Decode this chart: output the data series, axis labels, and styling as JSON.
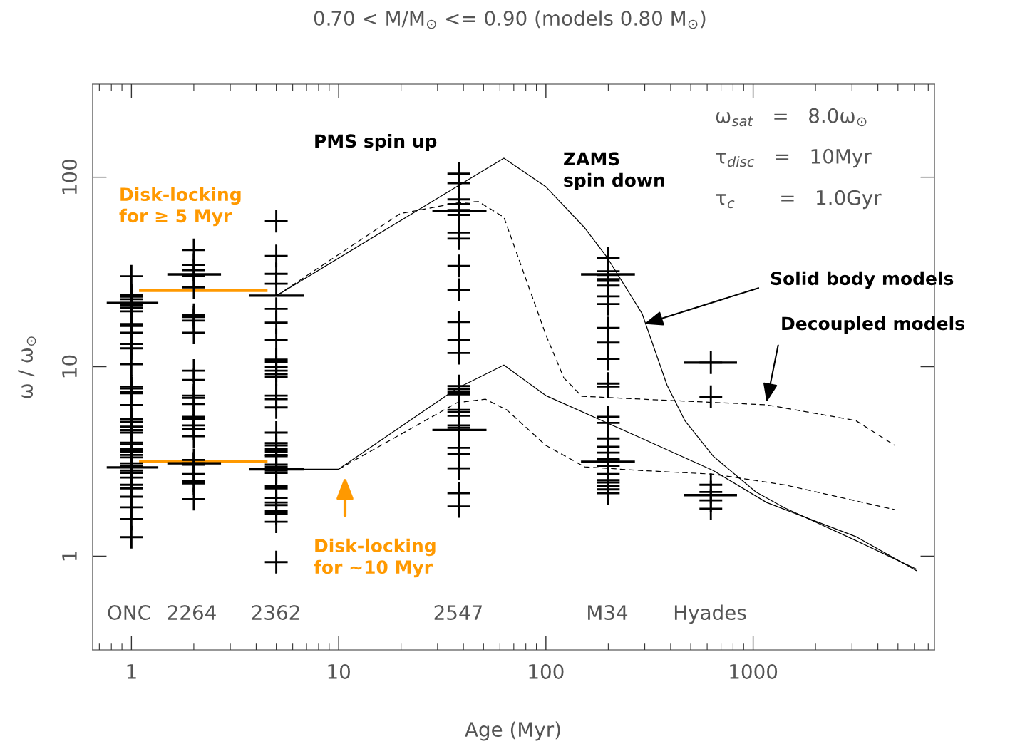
{
  "chart_data": {
    "type": "line",
    "title": "0.70 < M/M$_{⊙}$ <= 0.90 (models 0.80 M$_{⊙}$)",
    "xlabel": "Age (Myr)",
    "ylabel": "ω / ω$_{⊙}$",
    "log": "xy",
    "xlim": [
      0.65,
      7500
    ],
    "ylim": [
      0.32,
      310
    ],
    "xticks": [
      1,
      10,
      100,
      1000
    ],
    "yticks": [
      1,
      10,
      100
    ],
    "series": [
      {
        "color": "#ff9900",
        "line_style": "solid",
        "x": [
          1.11,
          4.45
        ],
        "values": [
          25.3,
          25.3
        ]
      },
      {
        "color": "#ff9900",
        "line_style": "solid",
        "x": [
          1.11,
          4.45
        ],
        "values": [
          3.16,
          3.16
        ]
      },
      {
        "color": "#000000",
        "line_style": "solid",
        "x": [
          5.02,
          37.2,
          62.7,
          100,
          154,
          196,
          291,
          384,
          468,
          642,
          1033,
          1416,
          3125,
          6124
        ],
        "values": [
          23.7,
          89.3,
          126,
          89,
          54,
          38.2,
          19.1,
          8.0,
          5.2,
          3.37,
          2.18,
          1.8,
          1.21,
          0.855
        ]
      },
      {
        "color": "#000000",
        "line_style": "solid",
        "x": [
          5.02,
          10,
          37.2,
          62.7,
          100,
          291,
          642,
          1162,
          3125,
          6124
        ],
        "values": [
          2.88,
          2.88,
          7.68,
          10.2,
          7.04,
          4.18,
          2.83,
          1.92,
          1.27,
          0.84
        ]
      },
      {
        "color": "#000000",
        "line_style": "dashed",
        "x": [
          5.02,
          19.8,
          37.2,
          47.2,
          62.7,
          82,
          100,
          122,
          149,
          291,
          1162,
          3125,
          4831
        ],
        "values": [
          23.7,
          64.2,
          73.1,
          74.4,
          61.5,
          27,
          14.7,
          8.74,
          6.98,
          6.74,
          6.29,
          5.2,
          3.84
        ]
      },
      {
        "color": "#000000",
        "line_style": "dashed",
        "x": [
          10,
          37.2,
          51,
          64.7,
          100,
          154,
          291,
          642,
          1416,
          4831
        ],
        "values": [
          2.88,
          6.45,
          6.74,
          5.92,
          3.84,
          2.96,
          2.83,
          2.71,
          2.38,
          1.76
        ]
      },
      {
        "type": "scatter",
        "color": "#000000",
        "marker": "cross",
        "x": [
          1,
          1,
          1,
          1,
          1,
          1,
          1,
          1,
          1,
          1,
          1,
          1,
          1,
          1,
          1,
          1,
          1,
          1,
          1,
          1,
          1,
          1,
          1,
          1,
          1,
          1,
          1,
          1,
          1,
          1,
          1,
          1,
          1,
          1,
          1,
          1,
          1,
          1,
          1,
          1,
          1,
          2,
          2,
          2,
          2,
          2,
          2,
          2,
          2,
          2,
          2,
          2,
          2,
          2,
          2,
          2,
          2,
          2,
          2,
          2,
          2,
          2,
          2,
          2,
          2,
          2,
          2,
          5,
          5,
          5,
          5,
          5,
          5,
          5,
          5,
          5,
          5,
          5,
          5,
          5,
          5,
          5,
          5,
          5,
          5,
          5,
          5,
          5,
          5,
          5,
          5,
          5,
          5,
          5,
          5,
          5,
          5,
          5,
          5,
          5,
          5,
          5,
          5,
          38,
          38,
          38,
          38,
          38,
          38,
          38,
          38,
          38,
          38,
          38,
          38,
          38,
          38,
          38,
          38,
          38,
          38,
          38,
          38,
          38,
          38,
          38,
          38,
          38,
          38,
          38,
          38,
          200,
          200,
          200,
          200,
          200,
          200,
          200,
          200,
          200,
          200,
          200,
          200,
          200,
          200,
          200,
          200,
          200,
          200,
          200,
          200,
          200,
          200,
          200,
          200,
          200,
          200,
          200,
          625,
          625,
          625,
          625,
          625,
          625
        ],
        "values": [
          30.0,
          23.8,
          23.4,
          22.7,
          21.7,
          21.1,
          20.5,
          19.6,
          16.8,
          16.4,
          15.1,
          13.2,
          12.5,
          10.3,
          7.86,
          7.68,
          7.35,
          7.24,
          6.27,
          5.27,
          5.12,
          4.83,
          4.63,
          4.49,
          3.97,
          3.89,
          3.67,
          3.57,
          3.42,
          3.32,
          3.09,
          3.0,
          2.83,
          2.75,
          2.6,
          2.38,
          2.28,
          2.06,
          1.81,
          1.57,
          1.26,
          41.3,
          34.5,
          32.3,
          30.3,
          26.2,
          18.8,
          18.3,
          17.5,
          15.1,
          9.53,
          8.5,
          7.04,
          6.84,
          6.36,
          5.43,
          5.27,
          4.9,
          4.69,
          4.3,
          3.22,
          3.09,
          3.04,
          2.71,
          2.49,
          2.42,
          2.0,
          58.6,
          38.4,
          30.9,
          27.4,
          20.2,
          17.1,
          13.9,
          10.9,
          10.6,
          9.96,
          9.53,
          9.13,
          8.8,
          7.04,
          6.74,
          6.09,
          4.49,
          3.95,
          3.84,
          3.67,
          3.57,
          3.42,
          3.37,
          3.04,
          2.96,
          2.83,
          2.75,
          2.35,
          2.28,
          2.03,
          1.92,
          1.86,
          1.73,
          1.68,
          1.52,
          0.93,
          104.4,
          93.0,
          76.4,
          72.1,
          67.1,
          63.3,
          51.0,
          47.4,
          34.0,
          25.5,
          17.2,
          13.9,
          11.8,
          7.9,
          7.61,
          7.35,
          7.14,
          5.92,
          5.75,
          5.51,
          4.9,
          4.76,
          4.63,
          3.73,
          3.47,
          2.91,
          2.15,
          1.83,
          37.4,
          31.9,
          30.5,
          29.0,
          28.4,
          26.8,
          23.5,
          21.4,
          16.0,
          13.4,
          11.0,
          8.14,
          7.86,
          5.43,
          5.05,
          4.18,
          3.78,
          3.52,
          3.27,
          3.22,
          3.0,
          2.71,
          2.52,
          2.45,
          2.35,
          2.25,
          2.15,
          10.5,
          6.94,
          2.38,
          2.18,
          1.97,
          1.78
        ]
      },
      {
        "color": "#000000",
        "line_style": "solid",
        "x": [
          0.77,
          1.33
        ],
        "values": [
          21.7,
          21.7
        ]
      },
      {
        "color": "#000000",
        "line_style": "solid",
        "x": [
          0.77,
          1.33
        ],
        "values": [
          2.94,
          2.94
        ]
      },
      {
        "color": "#000000",
        "line_style": "solid",
        "x": [
          1.51,
          2.67
        ],
        "values": [
          30.7,
          30.7
        ]
      },
      {
        "color": "#000000",
        "line_style": "solid",
        "x": [
          1.51,
          2.67
        ],
        "values": [
          3.09,
          3.09
        ]
      },
      {
        "color": "#000000",
        "line_style": "solid",
        "x": [
          3.75,
          6.7
        ],
        "values": [
          23.7,
          23.7
        ]
      },
      {
        "color": "#000000",
        "line_style": "solid",
        "x": [
          3.75,
          6.7
        ],
        "values": [
          2.87,
          2.87
        ]
      },
      {
        "color": "#000000",
        "line_style": "solid",
        "x": [
          28.7,
          51.0
        ],
        "values": [
          66.5,
          66.5
        ]
      },
      {
        "color": "#000000",
        "line_style": "solid",
        "x": [
          28.7,
          51.0
        ],
        "values": [
          4.63,
          4.63
        ]
      },
      {
        "color": "#000000",
        "line_style": "solid",
        "x": [
          149.7,
          265.3
        ],
        "values": [
          30.7,
          30.7
        ]
      },
      {
        "color": "#000000",
        "line_style": "solid",
        "x": [
          149.7,
          265.3
        ],
        "values": [
          3.15,
          3.15
        ]
      },
      {
        "color": "#000000",
        "line_style": "solid",
        "x": [
          468,
          825
        ],
        "values": [
          10.5,
          10.5
        ]
      },
      {
        "color": "#000000",
        "line_style": "solid",
        "x": [
          468,
          825
        ],
        "values": [
          2.1,
          2.1
        ]
      }
    ],
    "annotations": [
      "PMS spin up",
      "ZAMS\nspin down",
      {
        "text": "Solid body models",
        "x": 298,
        "y": 16.8
      },
      {
        "text": "Decoupled models",
        "x": 1162,
        "y": 6.5
      },
      "Disk-locking\nfor ≥ 5 Myr",
      "Disk-locking\nfor ~10 Myr",
      "ω$_{sat}$   =   8.0ω$_{⊙}$",
      "τ$_{disc}$   =   10Myr",
      "τ$_{c}$       =   1.0Gyr",
      "ONC",
      "2264",
      "2362",
      "2547",
      "M34",
      "Hyades"
    ]
  }
}
